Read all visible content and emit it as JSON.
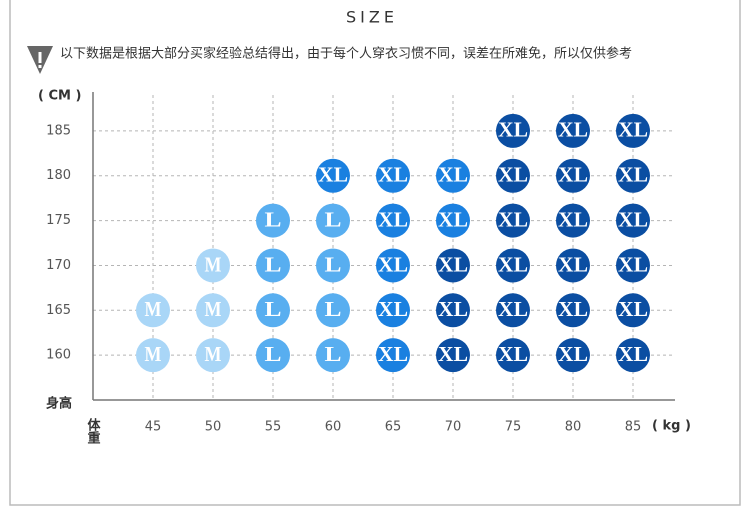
{
  "chart_data": {
    "type": "scatter",
    "title": "SIZE",
    "subtitle": "以下数据是根据大部分买家经验总结得出，由于每个人穿衣习惯不同，误差在所难免，所以仅供参考",
    "y_unit": "( CM )",
    "x_unit": "( kg )",
    "y_label": "身高",
    "x_label": "体重",
    "xlim": [
      40,
      88.5
    ],
    "ylim": [
      155,
      189
    ],
    "xticks": [
      45,
      50,
      55,
      60,
      65,
      70,
      75,
      80,
      85
    ],
    "yticks": [
      160,
      165,
      170,
      175,
      180,
      185
    ],
    "grid": true,
    "points": [
      {
        "x": 75,
        "y": 185,
        "label": "XL",
        "color": "#0b4ea2"
      },
      {
        "x": 80,
        "y": 185,
        "label": "XL",
        "color": "#0b4ea2"
      },
      {
        "x": 85,
        "y": 185,
        "label": "XL",
        "color": "#0b4ea2"
      },
      {
        "x": 60,
        "y": 180,
        "label": "XL",
        "color": "#1a80e0"
      },
      {
        "x": 65,
        "y": 180,
        "label": "XL",
        "color": "#1a80e0"
      },
      {
        "x": 70,
        "y": 180,
        "label": "XL",
        "color": "#1a80e0"
      },
      {
        "x": 75,
        "y": 180,
        "label": "XL",
        "color": "#0b4ea2"
      },
      {
        "x": 80,
        "y": 180,
        "label": "XL",
        "color": "#0b4ea2"
      },
      {
        "x": 85,
        "y": 180,
        "label": "XL",
        "color": "#0b4ea2"
      },
      {
        "x": 55,
        "y": 175,
        "label": "L",
        "color": "#58aef0"
      },
      {
        "x": 60,
        "y": 175,
        "label": "L",
        "color": "#58aef0"
      },
      {
        "x": 65,
        "y": 175,
        "label": "XL",
        "color": "#1a80e0"
      },
      {
        "x": 70,
        "y": 175,
        "label": "XL",
        "color": "#1a80e0"
      },
      {
        "x": 75,
        "y": 175,
        "label": "XL",
        "color": "#0b4ea2"
      },
      {
        "x": 80,
        "y": 175,
        "label": "XL",
        "color": "#0b4ea2"
      },
      {
        "x": 85,
        "y": 175,
        "label": "XL",
        "color": "#0b4ea2"
      },
      {
        "x": 50,
        "y": 170,
        "label": "M",
        "color": "#a9d6f7"
      },
      {
        "x": 55,
        "y": 170,
        "label": "L",
        "color": "#58aef0"
      },
      {
        "x": 60,
        "y": 170,
        "label": "L",
        "color": "#58aef0"
      },
      {
        "x": 65,
        "y": 170,
        "label": "XL",
        "color": "#1a80e0"
      },
      {
        "x": 70,
        "y": 170,
        "label": "XL",
        "color": "#0b4ea2"
      },
      {
        "x": 75,
        "y": 170,
        "label": "XL",
        "color": "#0b4ea2"
      },
      {
        "x": 80,
        "y": 170,
        "label": "XL",
        "color": "#0b4ea2"
      },
      {
        "x": 85,
        "y": 170,
        "label": "XL",
        "color": "#0b4ea2"
      },
      {
        "x": 45,
        "y": 165,
        "label": "M",
        "color": "#a9d6f7"
      },
      {
        "x": 50,
        "y": 165,
        "label": "M",
        "color": "#a9d6f7"
      },
      {
        "x": 55,
        "y": 165,
        "label": "L",
        "color": "#58aef0"
      },
      {
        "x": 60,
        "y": 165,
        "label": "L",
        "color": "#58aef0"
      },
      {
        "x": 65,
        "y": 165,
        "label": "XL",
        "color": "#1a80e0"
      },
      {
        "x": 70,
        "y": 165,
        "label": "XL",
        "color": "#0b4ea2"
      },
      {
        "x": 75,
        "y": 165,
        "label": "XL",
        "color": "#0b4ea2"
      },
      {
        "x": 80,
        "y": 165,
        "label": "XL",
        "color": "#0b4ea2"
      },
      {
        "x": 85,
        "y": 165,
        "label": "XL",
        "color": "#0b4ea2"
      },
      {
        "x": 45,
        "y": 160,
        "label": "M",
        "color": "#a9d6f7"
      },
      {
        "x": 50,
        "y": 160,
        "label": "M",
        "color": "#a9d6f7"
      },
      {
        "x": 55,
        "y": 160,
        "label": "L",
        "color": "#58aef0"
      },
      {
        "x": 60,
        "y": 160,
        "label": "L",
        "color": "#58aef0"
      },
      {
        "x": 65,
        "y": 160,
        "label": "XL",
        "color": "#1a80e0"
      },
      {
        "x": 70,
        "y": 160,
        "label": "XL",
        "color": "#0b4ea2"
      },
      {
        "x": 75,
        "y": 160,
        "label": "XL",
        "color": "#0b4ea2"
      },
      {
        "x": 80,
        "y": 160,
        "label": "XL",
        "color": "#0b4ea2"
      },
      {
        "x": 85,
        "y": 160,
        "label": "XL",
        "color": "#0b4ea2"
      }
    ]
  }
}
